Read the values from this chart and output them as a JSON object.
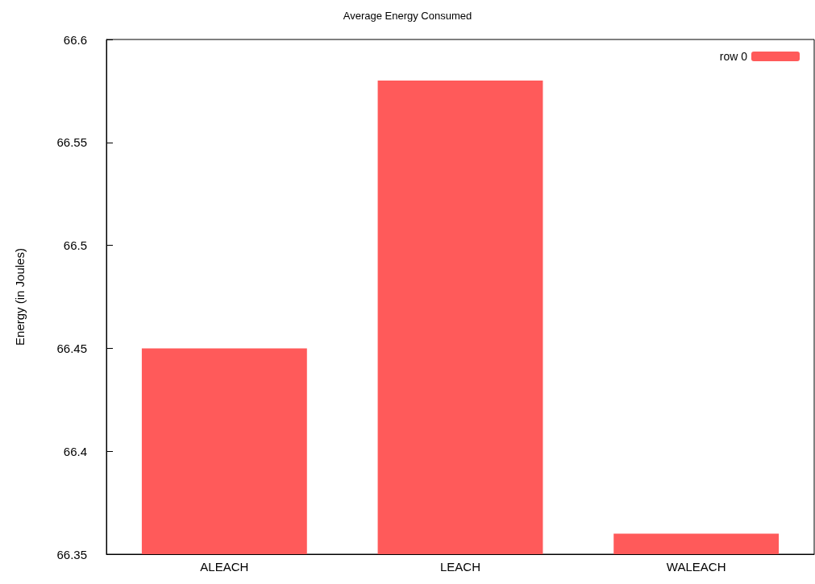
{
  "chart_data": {
    "type": "bar",
    "title": "Average Energy Consumed",
    "ylabel": "Energy (in Joules)",
    "categories": [
      "ALEACH",
      "LEACH",
      "WALEACH"
    ],
    "series": [
      {
        "name": "row 0",
        "color": "#ff5a5a",
        "values": [
          66.45,
          66.58,
          66.36
        ]
      }
    ],
    "ylim": [
      66.35,
      66.6
    ],
    "yticks": [
      66.35,
      66.4,
      66.45,
      66.5,
      66.55,
      66.6
    ],
    "grid": false,
    "legend": "top right"
  }
}
